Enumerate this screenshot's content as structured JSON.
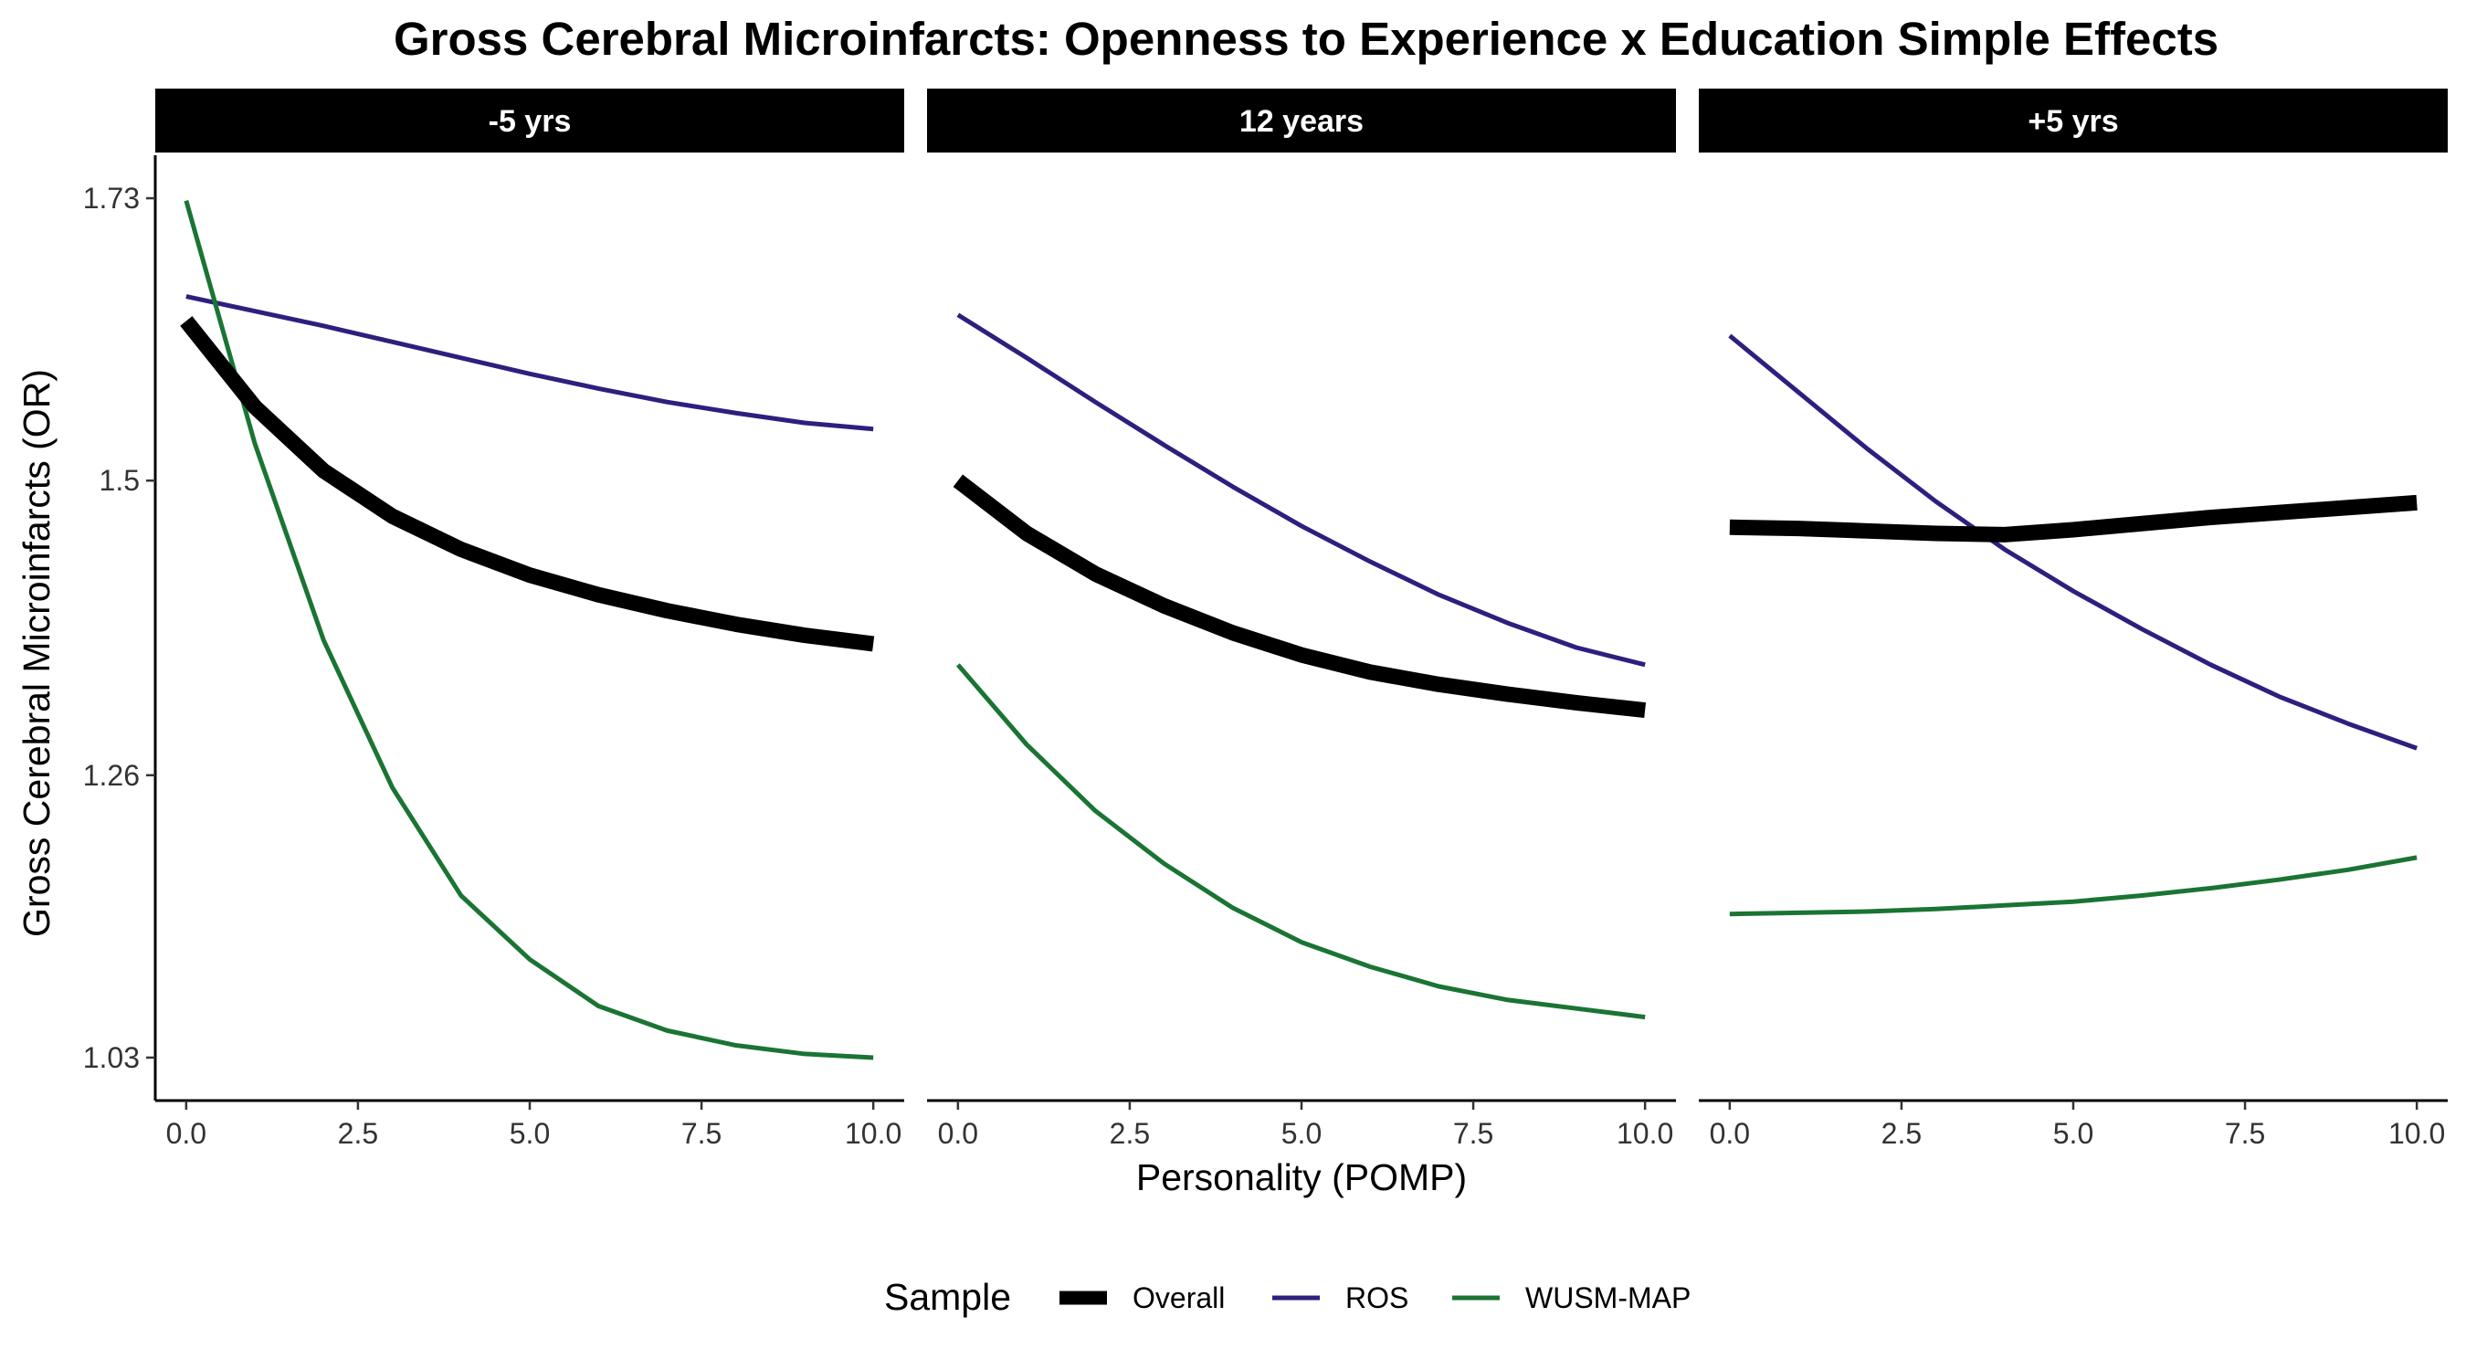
{
  "title": "Gross Cerebral Microinfarcts: Openness to Experience x Education Simple Effects",
  "xlabel": "Personality (POMP)",
  "ylabel": "Gross Cerebral Microinfarcts (OR)",
  "legend": {
    "title": "Sample",
    "placement": "bottom",
    "entries": [
      {
        "name": "Overall",
        "color": "#000000"
      },
      {
        "name": "ROS",
        "color": "#2e1f7e"
      },
      {
        "name": "WUSM-MAP",
        "color": "#1a7433"
      }
    ]
  },
  "chart_data": {
    "type": "line",
    "title": "Gross Cerebral Microinfarcts: Openness to Experience x Education Simple Effects",
    "xlabel": "Personality (POMP)",
    "ylabel": "Gross Cerebral Microinfarcts (OR)",
    "xlim": [
      -0.45,
      10.45
    ],
    "ylim": [
      0.995,
      1.765
    ],
    "x_ticks": [
      0,
      2.5,
      5,
      7.5,
      10
    ],
    "x_tick_labels": [
      "0.0",
      "2.5",
      "5.0",
      "7.5",
      "10.0"
    ],
    "y_ticks": [
      1.03,
      1.26,
      1.5,
      1.73
    ],
    "y_tick_labels": [
      "1.03",
      "1.26",
      "1.5",
      "1.73"
    ],
    "grid": false,
    "legend_placement": "bottom",
    "x": [
      0,
      1,
      2,
      3,
      4,
      5,
      6,
      7,
      8,
      9,
      10
    ],
    "panels": [
      {
        "label": "-5 yrs",
        "series": [
          {
            "name": "Overall",
            "color": "#000000",
            "values": [
              1.63,
              1.56,
              1.508,
              1.471,
              1.444,
              1.423,
              1.407,
              1.394,
              1.383,
              1.374,
              1.367
            ]
          },
          {
            "name": "ROS",
            "color": "#2e1f7e",
            "values": [
              1.65,
              1.638,
              1.626,
              1.613,
              1.6,
              1.587,
              1.575,
              1.564,
              1.555,
              1.547,
              1.542
            ]
          },
          {
            "name": "WUSM-MAP",
            "color": "#1a7433",
            "values": [
              1.728,
              1.53,
              1.37,
              1.25,
              1.162,
              1.11,
              1.072,
              1.052,
              1.04,
              1.033,
              1.03
            ]
          }
        ]
      },
      {
        "label": "12 years",
        "series": [
          {
            "name": "Overall",
            "color": "#000000",
            "values": [
              1.5,
              1.457,
              1.424,
              1.398,
              1.376,
              1.358,
              1.344,
              1.334,
              1.326,
              1.319,
              1.313
            ]
          },
          {
            "name": "ROS",
            "color": "#2e1f7e",
            "values": [
              1.635,
              1.6,
              1.564,
              1.529,
              1.495,
              1.463,
              1.434,
              1.407,
              1.384,
              1.364,
              1.35
            ]
          },
          {
            "name": "WUSM-MAP",
            "color": "#1a7433",
            "values": [
              1.35,
              1.285,
              1.231,
              1.188,
              1.152,
              1.124,
              1.104,
              1.088,
              1.077,
              1.07,
              1.063
            ]
          }
        ]
      },
      {
        "label": "+5 yrs",
        "series": [
          {
            "name": "Overall",
            "color": "#000000",
            "values": [
              1.462,
              1.461,
              1.459,
              1.457,
              1.456,
              1.46,
              1.465,
              1.47,
              1.474,
              1.478,
              1.482
            ]
          },
          {
            "name": "ROS",
            "color": "#2e1f7e",
            "values": [
              1.618,
              1.572,
              1.526,
              1.483,
              1.444,
              1.41,
              1.379,
              1.35,
              1.324,
              1.302,
              1.282
            ]
          },
          {
            "name": "WUSM-MAP",
            "color": "#1a7433",
            "values": [
              1.147,
              1.148,
              1.149,
              1.151,
              1.154,
              1.157,
              1.162,
              1.168,
              1.175,
              1.183,
              1.193
            ]
          }
        ]
      }
    ]
  }
}
